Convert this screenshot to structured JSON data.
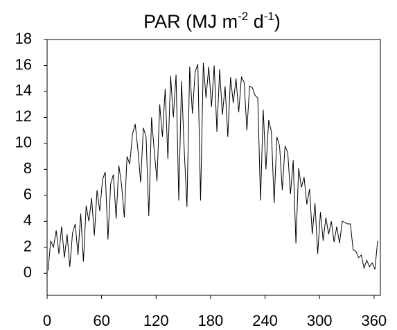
{
  "chart_data": {
    "type": "line",
    "title_parts": [
      "PAR (MJ m",
      "-2",
      " d",
      "-1",
      ")"
    ],
    "x": [
      1,
      4,
      7,
      10,
      13,
      16,
      19,
      22,
      25,
      28,
      31,
      34,
      37,
      40,
      43,
      46,
      49,
      52,
      55,
      58,
      61,
      64,
      67,
      70,
      73,
      76,
      79,
      82,
      85,
      88,
      91,
      94,
      97,
      100,
      103,
      106,
      109,
      112,
      115,
      118,
      121,
      124,
      127,
      130,
      133,
      136,
      139,
      142,
      145,
      148,
      151,
      154,
      157,
      160,
      163,
      166,
      169,
      172,
      175,
      178,
      181,
      184,
      187,
      190,
      193,
      196,
      199,
      202,
      205,
      208,
      211,
      214,
      217,
      220,
      223,
      226,
      229,
      232,
      235,
      238,
      241,
      244,
      247,
      250,
      253,
      256,
      259,
      262,
      265,
      268,
      271,
      274,
      277,
      280,
      283,
      286,
      289,
      292,
      295,
      298,
      301,
      304,
      307,
      310,
      313,
      316,
      319,
      322,
      325,
      328,
      331,
      334,
      337,
      340,
      343,
      346,
      349,
      352,
      355,
      358,
      361,
      364
    ],
    "series": [
      {
        "color": "#000000",
        "values": [
          0.2,
          2.5,
          2.0,
          3.3,
          1.5,
          3.6,
          1.2,
          3.0,
          0.5,
          3.1,
          3.8,
          1.4,
          4.6,
          0.9,
          5.2,
          4.0,
          5.8,
          2.9,
          6.4,
          4.8,
          7.2,
          7.8,
          2.6,
          6.9,
          7.6,
          4.2,
          8.3,
          6.8,
          4.3,
          9.0,
          8.4,
          10.7,
          11.5,
          9.5,
          7.0,
          11.2,
          10.5,
          4.4,
          12.0,
          9.4,
          7.1,
          13.0,
          10.5,
          14.2,
          8.8,
          15.2,
          12.0,
          15.3,
          5.6,
          14.8,
          9.5,
          5.1,
          15.9,
          12.3,
          15.5,
          16.1,
          5.6,
          16.2,
          13.5,
          15.9,
          12.8,
          16.0,
          10.9,
          15.7,
          12.2,
          14.4,
          10.5,
          15.1,
          13.1,
          15.0,
          12.4,
          15.1,
          14.7,
          11.0,
          14.4,
          14.3,
          13.7,
          13.5,
          5.6,
          12.6,
          8.0,
          11.8,
          10.9,
          5.4,
          10.5,
          9.8,
          6.4,
          9.8,
          9.3,
          6.1,
          8.7,
          2.3,
          8.1,
          6.6,
          7.4,
          5.3,
          6.5,
          3.0,
          5.4,
          1.5,
          4.7,
          2.5,
          4.3,
          3.0,
          4.0,
          2.4,
          3.6,
          2.3,
          4.0,
          3.9,
          3.8,
          3.8,
          1.8,
          1.7,
          1.2,
          1.4,
          0.4,
          1.0,
          0.5,
          0.8,
          0.3,
          2.5
        ]
      }
    ],
    "xlim": [
      0,
      367
    ],
    "xticks": [
      0,
      60,
      120,
      180,
      240,
      300,
      360
    ],
    "ylim": [
      -1.7,
      18
    ],
    "yticks": [
      0,
      2,
      4,
      6,
      8,
      10,
      12,
      14,
      16,
      18
    ]
  }
}
